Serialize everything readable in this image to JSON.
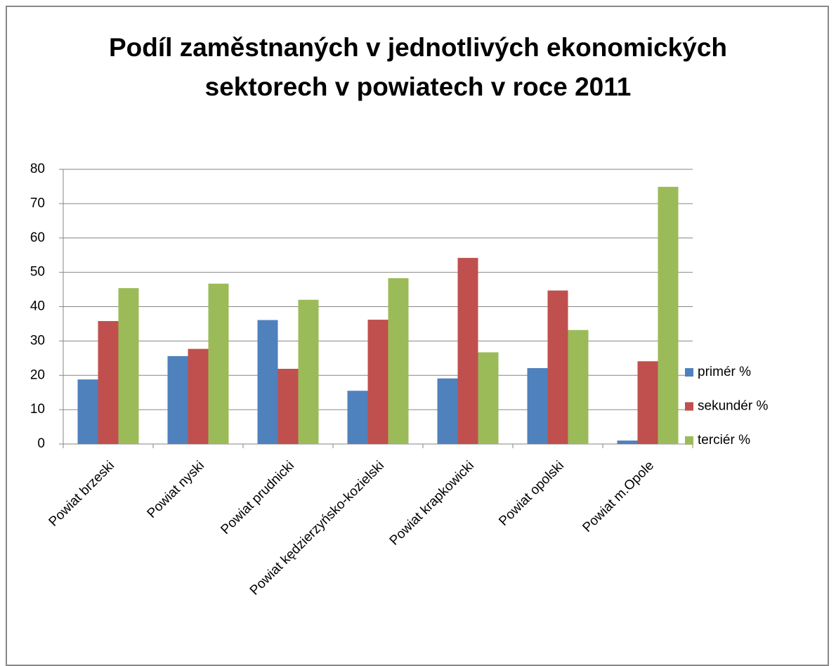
{
  "chart_data": {
    "type": "bar",
    "title": "Podíl zaměstnaných v jednotlivých ekonomických sektorech v powiatech v roce 2011",
    "categories": [
      "Powiat brzeski",
      "Powiat nyski",
      "Powiat prudnicki",
      "Powiat kędzierzyńsko-kozielski",
      "Powiat krapkowicki",
      "Powiat opolski",
      "Powiat m.Opole"
    ],
    "series": [
      {
        "name": "primér %",
        "color": "#4f81bd",
        "values": [
          18.8,
          25.6,
          36.1,
          15.5,
          19.1,
          22.1,
          1.0
        ]
      },
      {
        "name": "sekundér %",
        "color": "#c0504d",
        "values": [
          35.8,
          27.7,
          21.9,
          36.2,
          54.2,
          44.7,
          24.1
        ]
      },
      {
        "name": "terciér %",
        "color": "#9bbb59",
        "values": [
          45.4,
          46.7,
          42.0,
          48.3,
          26.7,
          33.2,
          74.9
        ]
      }
    ],
    "ylim": [
      0,
      80
    ],
    "yticks": [
      0,
      10,
      20,
      30,
      40,
      50,
      60,
      70,
      80
    ],
    "grid": true,
    "legend": "right"
  }
}
